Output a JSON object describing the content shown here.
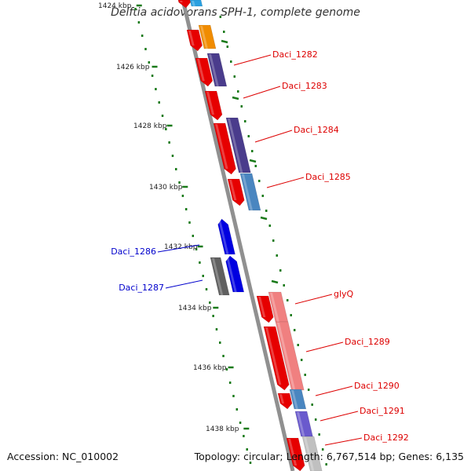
{
  "title": "Delftia acidovorans SPH-1, complete genome",
  "footer": {
    "accession": "Accession: NC_010002",
    "summary": "Topology: circular; Length: 6,767,514 bp; Genes: 6,135"
  },
  "ruler": {
    "tick_color": "#1a7a1a",
    "labels": [
      {
        "text": "1424 kbp",
        "kb": 1424
      },
      {
        "text": "1426 kbp",
        "kb": 1426
      },
      {
        "text": "1428 kbp",
        "kb": 1428
      },
      {
        "text": "1430 kbp",
        "kb": 1430
      },
      {
        "text": "1432 kbp",
        "kb": 1432
      },
      {
        "text": "1434 kbp",
        "kb": 1434
      },
      {
        "text": "1436 kbp",
        "kb": 1436
      },
      {
        "text": "1438 kbp",
        "kb": 1438
      }
    ]
  },
  "genes": [
    {
      "label": "Daci_1282",
      "strand": "+",
      "color": "#4a3c8c"
    },
    {
      "label": "Daci_1283",
      "strand": "+",
      "color": "#e00000"
    },
    {
      "label": "Daci_1284",
      "strand": "+",
      "color": "#4a3c8c"
    },
    {
      "label": "Daci_1285",
      "strand": "+",
      "color": "#4a86c0"
    },
    {
      "label": "Daci_1286",
      "strand": "-",
      "color": "#0000e0"
    },
    {
      "label": "Daci_1287",
      "strand": "-",
      "color": "#0000e0"
    },
    {
      "label": "glyQ",
      "strand": "+",
      "color": "#f08080"
    },
    {
      "label": "Daci_1289",
      "strand": "+",
      "color": "#f08080"
    },
    {
      "label": "Daci_1290",
      "strand": "+",
      "color": "#4a86c0"
    },
    {
      "label": "Daci_1291",
      "strand": "+",
      "color": "#6a5acd"
    },
    {
      "label": "Daci_1292",
      "strand": "+",
      "color": "#c0c0c0"
    }
  ],
  "colors": {
    "backbone": "#888888",
    "cds": "#e60000",
    "plus_label": "#dd0000",
    "minus_label": "#0000cc"
  }
}
